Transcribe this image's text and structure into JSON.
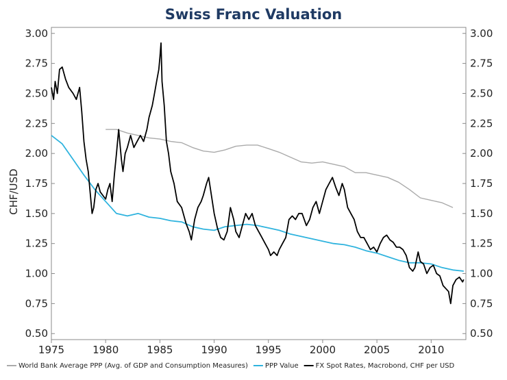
{
  "chart_data": {
    "type": "line",
    "title": "Swiss Franc Valuation",
    "ylabel": "CHF/USD",
    "xlabel": "",
    "xlim": [
      1975,
      2013.2
    ],
    "ylim": [
      0.45,
      3.05
    ],
    "x_ticks": [
      1975,
      1980,
      1985,
      1990,
      1995,
      2000,
      2005,
      2010
    ],
    "x_tick_labels": [
      "1975",
      "1980",
      "1985",
      "1990",
      "1995",
      "2000",
      "2005",
      "2010"
    ],
    "y_ticks": [
      0.5,
      0.75,
      1.0,
      1.25,
      1.5,
      1.75,
      2.0,
      2.25,
      2.5,
      2.75,
      3.0
    ],
    "y_tick_labels": [
      "0.50",
      "0.75",
      "1.00",
      "1.25",
      "1.50",
      "1.75",
      "2.00",
      "2.25",
      "2.50",
      "2.75",
      "3.00"
    ],
    "grid": false,
    "legend_position": "bottom",
    "series": [
      {
        "name": "World Bank Average PPP (Avg. of GDP and Consumption Measures)",
        "color": "#aaaaaa",
        "x": [
          1980,
          1981,
          1982,
          1983,
          1984,
          1985,
          1986,
          1987,
          1988,
          1989,
          1990,
          1991,
          1992,
          1993,
          1994,
          1995,
          1996,
          1997,
          1998,
          1999,
          2000,
          2001,
          2002,
          2003,
          2004,
          2005,
          2006,
          2007,
          2008,
          2009,
          2010,
          2011,
          2012
        ],
        "y": [
          2.2,
          2.2,
          2.17,
          2.15,
          2.13,
          2.12,
          2.1,
          2.09,
          2.05,
          2.02,
          2.01,
          2.03,
          2.06,
          2.07,
          2.07,
          2.04,
          2.01,
          1.97,
          1.93,
          1.92,
          1.93,
          1.91,
          1.89,
          1.84,
          1.84,
          1.82,
          1.8,
          1.76,
          1.7,
          1.63,
          1.61,
          1.59,
          1.55
        ]
      },
      {
        "name": "PPP Value",
        "color": "#2eb3de",
        "x": [
          1975,
          1976,
          1977,
          1978,
          1979,
          1980,
          1981,
          1982,
          1983,
          1984,
          1985,
          1986,
          1987,
          1988,
          1989,
          1990,
          1991,
          1992,
          1993,
          1994,
          1995,
          1996,
          1997,
          1998,
          1999,
          2000,
          2001,
          2002,
          2003,
          2004,
          2005,
          2006,
          2007,
          2008,
          2009,
          2010,
          2011,
          2012,
          2013
        ],
        "y": [
          2.15,
          2.08,
          1.95,
          1.82,
          1.7,
          1.6,
          1.5,
          1.48,
          1.5,
          1.47,
          1.46,
          1.44,
          1.43,
          1.39,
          1.37,
          1.36,
          1.39,
          1.4,
          1.41,
          1.4,
          1.38,
          1.36,
          1.33,
          1.31,
          1.29,
          1.27,
          1.25,
          1.24,
          1.22,
          1.19,
          1.17,
          1.14,
          1.11,
          1.09,
          1.09,
          1.08,
          1.05,
          1.03,
          1.02
        ]
      },
      {
        "name": "FX Spot Rates, Macrobond, CHF per USD",
        "color": "#000000",
        "x": [
          1975.0,
          1975.2,
          1975.35,
          1975.55,
          1975.75,
          1976.0,
          1976.3,
          1976.6,
          1977.0,
          1977.3,
          1977.6,
          1977.8,
          1978.0,
          1978.2,
          1978.4,
          1978.6,
          1978.75,
          1978.9,
          1979.1,
          1979.3,
          1979.5,
          1979.75,
          1980.0,
          1980.2,
          1980.4,
          1980.6,
          1980.8,
          1981.0,
          1981.2,
          1981.45,
          1981.6,
          1981.8,
          1982.0,
          1982.3,
          1982.6,
          1982.9,
          1983.2,
          1983.5,
          1983.8,
          1984.0,
          1984.3,
          1984.5,
          1984.7,
          1984.9,
          1985.0,
          1985.1,
          1985.2,
          1985.4,
          1985.6,
          1985.8,
          1986.0,
          1986.3,
          1986.6,
          1987.0,
          1987.4,
          1987.7,
          1987.9,
          1988.2,
          1988.5,
          1988.8,
          1989.0,
          1989.3,
          1989.5,
          1989.8,
          1990.0,
          1990.3,
          1990.6,
          1990.9,
          1991.2,
          1991.5,
          1991.8,
          1992.0,
          1992.3,
          1992.6,
          1992.9,
          1993.2,
          1993.5,
          1993.8,
          1994.1,
          1994.4,
          1994.7,
          1995.0,
          1995.2,
          1995.5,
          1995.8,
          1996.0,
          1996.3,
          1996.6,
          1996.9,
          1997.2,
          1997.5,
          1997.8,
          1998.1,
          1998.5,
          1998.8,
          1999.1,
          1999.4,
          1999.7,
          2000.0,
          2000.3,
          2000.6,
          2000.9,
          2001.2,
          2001.5,
          2001.8,
          2002.0,
          2002.3,
          2002.6,
          2002.9,
          2003.2,
          2003.5,
          2003.8,
          2004.1,
          2004.4,
          2004.7,
          2005.0,
          2005.3,
          2005.6,
          2005.9,
          2006.2,
          2006.5,
          2006.8,
          2007.1,
          2007.4,
          2007.7,
          2008.0,
          2008.3,
          2008.5,
          2008.8,
          2009.0,
          2009.3,
          2009.6,
          2009.9,
          2010.2,
          2010.5,
          2010.8,
          2011.1,
          2011.4,
          2011.6,
          2011.8,
          2012.0,
          2012.3,
          2012.6,
          2012.9,
          2013.0
        ],
        "y": [
          2.55,
          2.45,
          2.6,
          2.5,
          2.7,
          2.72,
          2.62,
          2.55,
          2.5,
          2.45,
          2.55,
          2.35,
          2.1,
          1.95,
          1.85,
          1.65,
          1.5,
          1.55,
          1.7,
          1.75,
          1.68,
          1.65,
          1.62,
          1.7,
          1.75,
          1.6,
          1.82,
          2.0,
          2.2,
          1.95,
          1.85,
          2.0,
          2.05,
          2.15,
          2.05,
          2.1,
          2.15,
          2.1,
          2.2,
          2.3,
          2.4,
          2.5,
          2.6,
          2.7,
          2.8,
          2.92,
          2.6,
          2.4,
          2.1,
          2.0,
          1.85,
          1.75,
          1.6,
          1.55,
          1.42,
          1.35,
          1.28,
          1.45,
          1.55,
          1.6,
          1.65,
          1.75,
          1.8,
          1.62,
          1.5,
          1.38,
          1.3,
          1.28,
          1.35,
          1.55,
          1.45,
          1.35,
          1.3,
          1.4,
          1.5,
          1.45,
          1.5,
          1.4,
          1.35,
          1.3,
          1.25,
          1.2,
          1.15,
          1.18,
          1.15,
          1.2,
          1.25,
          1.3,
          1.45,
          1.48,
          1.45,
          1.5,
          1.5,
          1.4,
          1.45,
          1.55,
          1.6,
          1.5,
          1.6,
          1.7,
          1.75,
          1.8,
          1.72,
          1.65,
          1.75,
          1.7,
          1.55,
          1.5,
          1.45,
          1.35,
          1.3,
          1.3,
          1.25,
          1.2,
          1.22,
          1.18,
          1.25,
          1.3,
          1.32,
          1.28,
          1.26,
          1.22,
          1.22,
          1.2,
          1.15,
          1.05,
          1.02,
          1.05,
          1.18,
          1.1,
          1.08,
          1.0,
          1.05,
          1.07,
          1.0,
          0.98,
          0.9,
          0.87,
          0.85,
          0.75,
          0.9,
          0.95,
          0.97,
          0.93,
          0.95
        ]
      }
    ]
  }
}
